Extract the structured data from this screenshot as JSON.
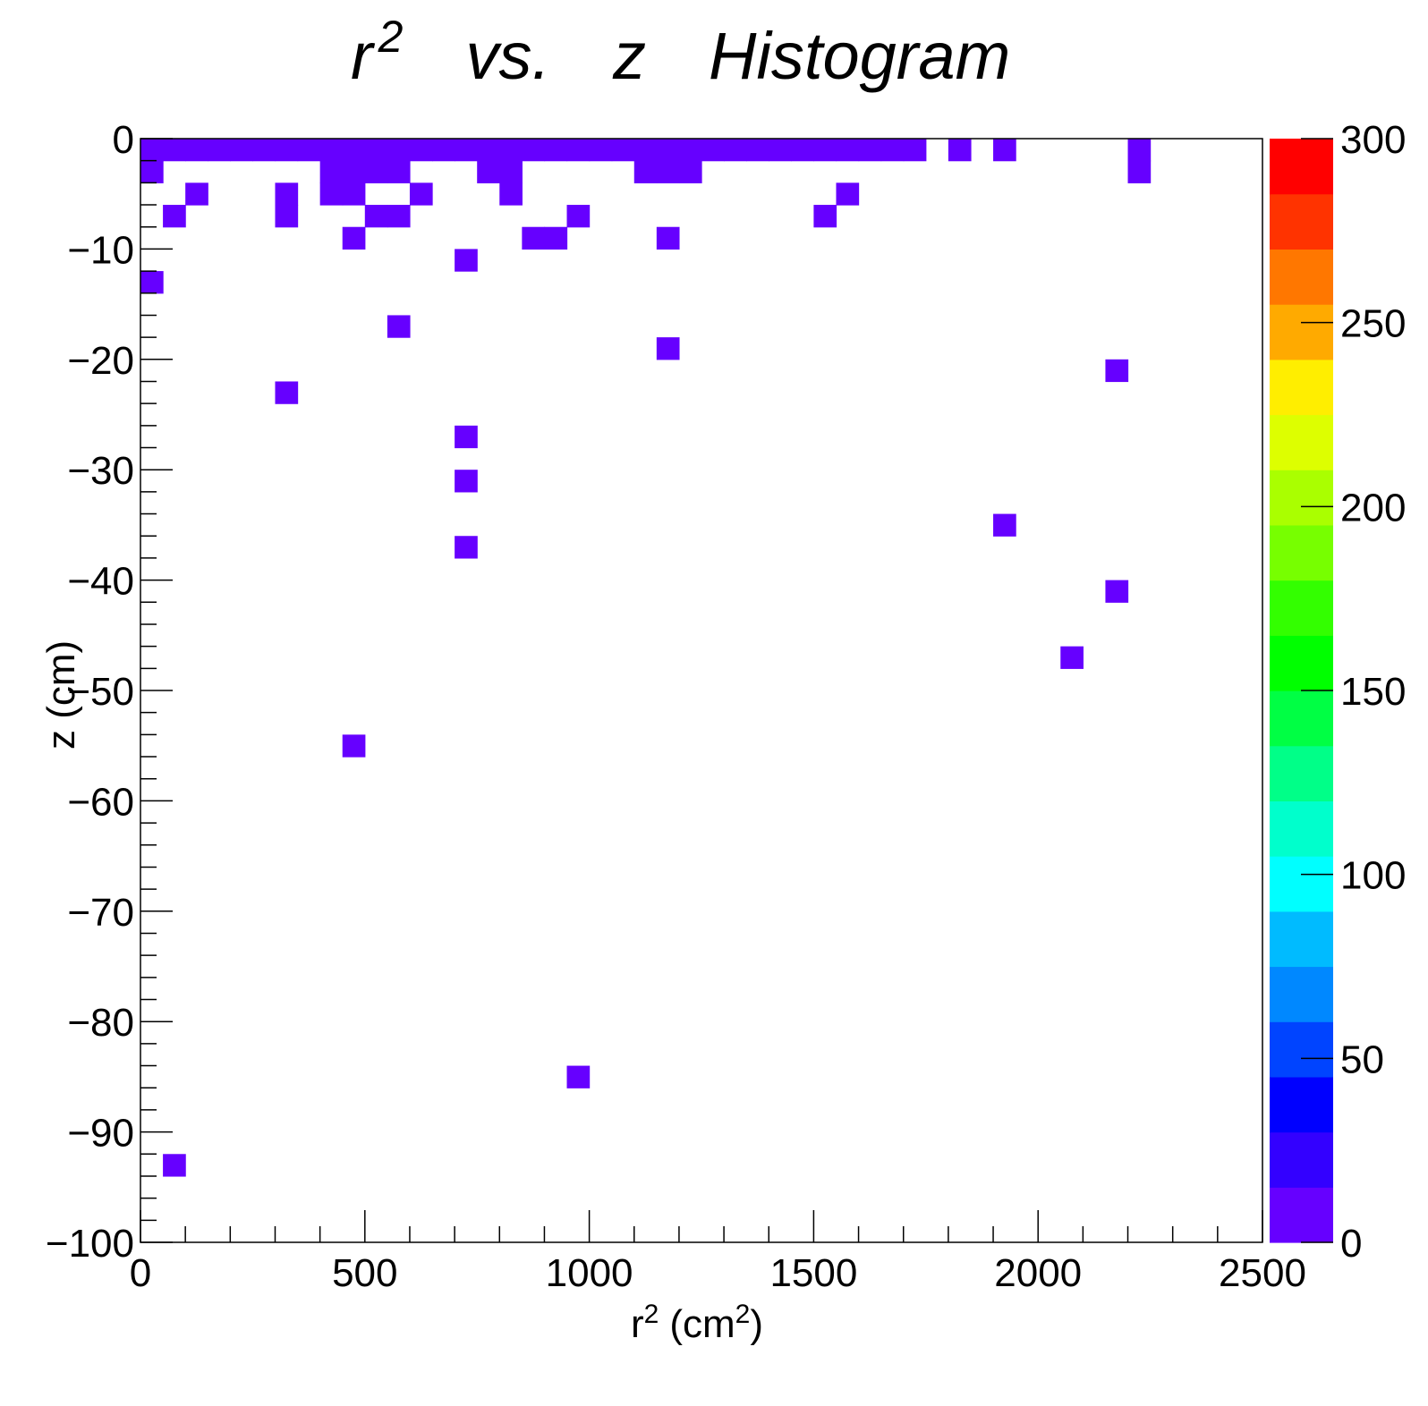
{
  "chart_data": {
    "type": "heatmap",
    "title": {
      "r": "r",
      "r_sup": "2",
      "vs": "vs.",
      "z": "z",
      "hist": "Histogram"
    },
    "xlabel": {
      "main": "r",
      "sup": "2",
      "unit_open": "(cm",
      "unit_sup": "2",
      "unit_close": ")"
    },
    "ylabel": "z (cm)",
    "xlim": [
      0,
      2500
    ],
    "ylim": [
      -100,
      0
    ],
    "zlim": [
      0,
      300
    ],
    "bin_width_x": 50,
    "bin_height_y": 2,
    "x_ticks": [
      "0",
      "500",
      "1000",
      "1500",
      "2000",
      "2500"
    ],
    "y_ticks": [
      "0",
      "−10",
      "−20",
      "−30",
      "−40",
      "−50",
      "−60",
      "−70",
      "−80",
      "−90",
      "−100"
    ],
    "z_ticks": [
      "0",
      "50",
      "100",
      "150",
      "200",
      "250",
      "300"
    ],
    "palette": [
      "#6600ff",
      "#3300ff",
      "#0000ff",
      "#0044ff",
      "#0088ff",
      "#00bbff",
      "#00ffff",
      "#00ffcc",
      "#00ff88",
      "#00ff44",
      "#00ff00",
      "#33ff00",
      "#77ff00",
      "#aaff00",
      "#ddff00",
      "#ffee00",
      "#ffaa00",
      "#ff7700",
      "#ff3300",
      "#ff0000"
    ],
    "cells": [
      {
        "x": 0,
        "y": -1,
        "z": 5
      },
      {
        "x": 50,
        "y": -1,
        "z": 5
      },
      {
        "x": 100,
        "y": -1,
        "z": 5
      },
      {
        "x": 150,
        "y": -1,
        "z": 5
      },
      {
        "x": 200,
        "y": -1,
        "z": 5
      },
      {
        "x": 250,
        "y": -1,
        "z": 5
      },
      {
        "x": 300,
        "y": -1,
        "z": 5
      },
      {
        "x": 350,
        "y": -1,
        "z": 5
      },
      {
        "x": 400,
        "y": -1,
        "z": 5
      },
      {
        "x": 450,
        "y": -1,
        "z": 5
      },
      {
        "x": 500,
        "y": -1,
        "z": 5
      },
      {
        "x": 550,
        "y": -1,
        "z": 5
      },
      {
        "x": 600,
        "y": -1,
        "z": 5
      },
      {
        "x": 650,
        "y": -1,
        "z": 5
      },
      {
        "x": 700,
        "y": -1,
        "z": 5
      },
      {
        "x": 750,
        "y": -1,
        "z": 5
      },
      {
        "x": 800,
        "y": -1,
        "z": 5
      },
      {
        "x": 850,
        "y": -1,
        "z": 5
      },
      {
        "x": 900,
        "y": -1,
        "z": 5
      },
      {
        "x": 950,
        "y": -1,
        "z": 5
      },
      {
        "x": 1000,
        "y": -1,
        "z": 5
      },
      {
        "x": 1050,
        "y": -1,
        "z": 5
      },
      {
        "x": 1100,
        "y": -1,
        "z": 5
      },
      {
        "x": 1150,
        "y": -1,
        "z": 5
      },
      {
        "x": 1200,
        "y": -1,
        "z": 5
      },
      {
        "x": 1250,
        "y": -1,
        "z": 5
      },
      {
        "x": 1300,
        "y": -1,
        "z": 5
      },
      {
        "x": 1350,
        "y": -1,
        "z": 5
      },
      {
        "x": 1400,
        "y": -1,
        "z": 5
      },
      {
        "x": 1450,
        "y": -1,
        "z": 5
      },
      {
        "x": 1500,
        "y": -1,
        "z": 5
      },
      {
        "x": 1550,
        "y": -1,
        "z": 5
      },
      {
        "x": 1600,
        "y": -1,
        "z": 5
      },
      {
        "x": 1650,
        "y": -1,
        "z": 5
      },
      {
        "x": 1700,
        "y": -1,
        "z": 5
      },
      {
        "x": 1800,
        "y": -1,
        "z": 5
      },
      {
        "x": 1900,
        "y": -1,
        "z": 5
      },
      {
        "x": 2200,
        "y": -1,
        "z": 5
      },
      {
        "x": 0,
        "y": -3,
        "z": 5
      },
      {
        "x": 400,
        "y": -3,
        "z": 5
      },
      {
        "x": 450,
        "y": -3,
        "z": 5
      },
      {
        "x": 500,
        "y": -3,
        "z": 5
      },
      {
        "x": 550,
        "y": -3,
        "z": 5
      },
      {
        "x": 750,
        "y": -3,
        "z": 5
      },
      {
        "x": 800,
        "y": -3,
        "z": 5
      },
      {
        "x": 1100,
        "y": -3,
        "z": 5
      },
      {
        "x": 1150,
        "y": -3,
        "z": 5
      },
      {
        "x": 1200,
        "y": -3,
        "z": 5
      },
      {
        "x": 2200,
        "y": -3,
        "z": 5
      },
      {
        "x": 100,
        "y": -5,
        "z": 5
      },
      {
        "x": 300,
        "y": -5,
        "z": 5
      },
      {
        "x": 400,
        "y": -5,
        "z": 5
      },
      {
        "x": 450,
        "y": -5,
        "z": 5
      },
      {
        "x": 600,
        "y": -5,
        "z": 5
      },
      {
        "x": 800,
        "y": -5,
        "z": 5
      },
      {
        "x": 1550,
        "y": -5,
        "z": 5
      },
      {
        "x": 50,
        "y": -7,
        "z": 5
      },
      {
        "x": 300,
        "y": -7,
        "z": 5
      },
      {
        "x": 500,
        "y": -7,
        "z": 5
      },
      {
        "x": 550,
        "y": -7,
        "z": 5
      },
      {
        "x": 950,
        "y": -7,
        "z": 5
      },
      {
        "x": 1500,
        "y": -7,
        "z": 5
      },
      {
        "x": 450,
        "y": -9,
        "z": 5
      },
      {
        "x": 850,
        "y": -9,
        "z": 5
      },
      {
        "x": 900,
        "y": -9,
        "z": 5
      },
      {
        "x": 1150,
        "y": -9,
        "z": 5
      },
      {
        "x": 700,
        "y": -11,
        "z": 5
      },
      {
        "x": 0,
        "y": -13,
        "z": 5
      },
      {
        "x": 550,
        "y": -17,
        "z": 5
      },
      {
        "x": 1150,
        "y": -19,
        "z": 5
      },
      {
        "x": 2150,
        "y": -21,
        "z": 5
      },
      {
        "x": 300,
        "y": -23,
        "z": 5
      },
      {
        "x": 700,
        "y": -27,
        "z": 5
      },
      {
        "x": 700,
        "y": -31,
        "z": 5
      },
      {
        "x": 1900,
        "y": -35,
        "z": 5
      },
      {
        "x": 700,
        "y": -37,
        "z": 5
      },
      {
        "x": 2150,
        "y": -41,
        "z": 5
      },
      {
        "x": 2050,
        "y": -47,
        "z": 5
      },
      {
        "x": 450,
        "y": -55,
        "z": 5
      },
      {
        "x": 950,
        "y": -85,
        "z": 5
      },
      {
        "x": 50,
        "y": -93,
        "z": 5
      }
    ]
  }
}
